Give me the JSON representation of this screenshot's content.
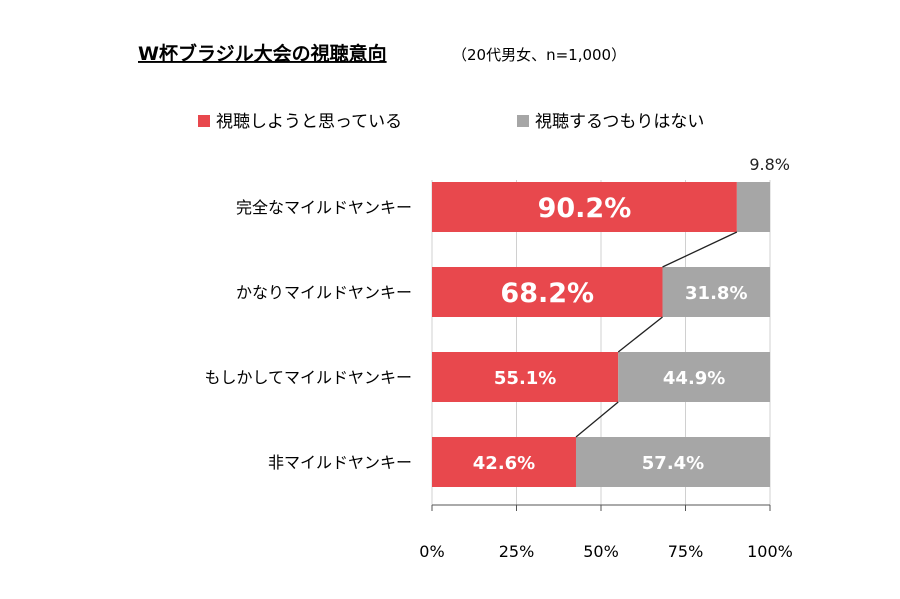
{
  "title": "W杯ブラジル大会の視聴意向",
  "subtitle": "（20代男女、n=1,000）",
  "chart_data": {
    "type": "bar",
    "orientation": "horizontal",
    "stacked": true,
    "categories": [
      "完全なマイルドヤンキー",
      "かなりマイルドヤンキー",
      "もしかしてマイルドヤンキー",
      "非マイルドヤンキー"
    ],
    "series": [
      {
        "name": "視聴しようと思っている",
        "color": "#e8484d",
        "values": [
          90.2,
          68.2,
          55.1,
          42.6
        ],
        "labels": [
          "90.2%",
          "68.2%",
          "55.1%",
          "42.6%"
        ]
      },
      {
        "name": "視聴するつもりはない",
        "color": "#a6a6a6",
        "values": [
          9.8,
          31.8,
          44.9,
          57.4
        ],
        "labels": [
          "9.8%",
          "31.8%",
          "44.9%",
          "57.4%"
        ]
      }
    ],
    "xlim": [
      0,
      100
    ],
    "xticks": [
      "0%",
      "25%",
      "50%",
      "75%",
      "100%"
    ],
    "legend_position": "top",
    "series_lines": true
  }
}
